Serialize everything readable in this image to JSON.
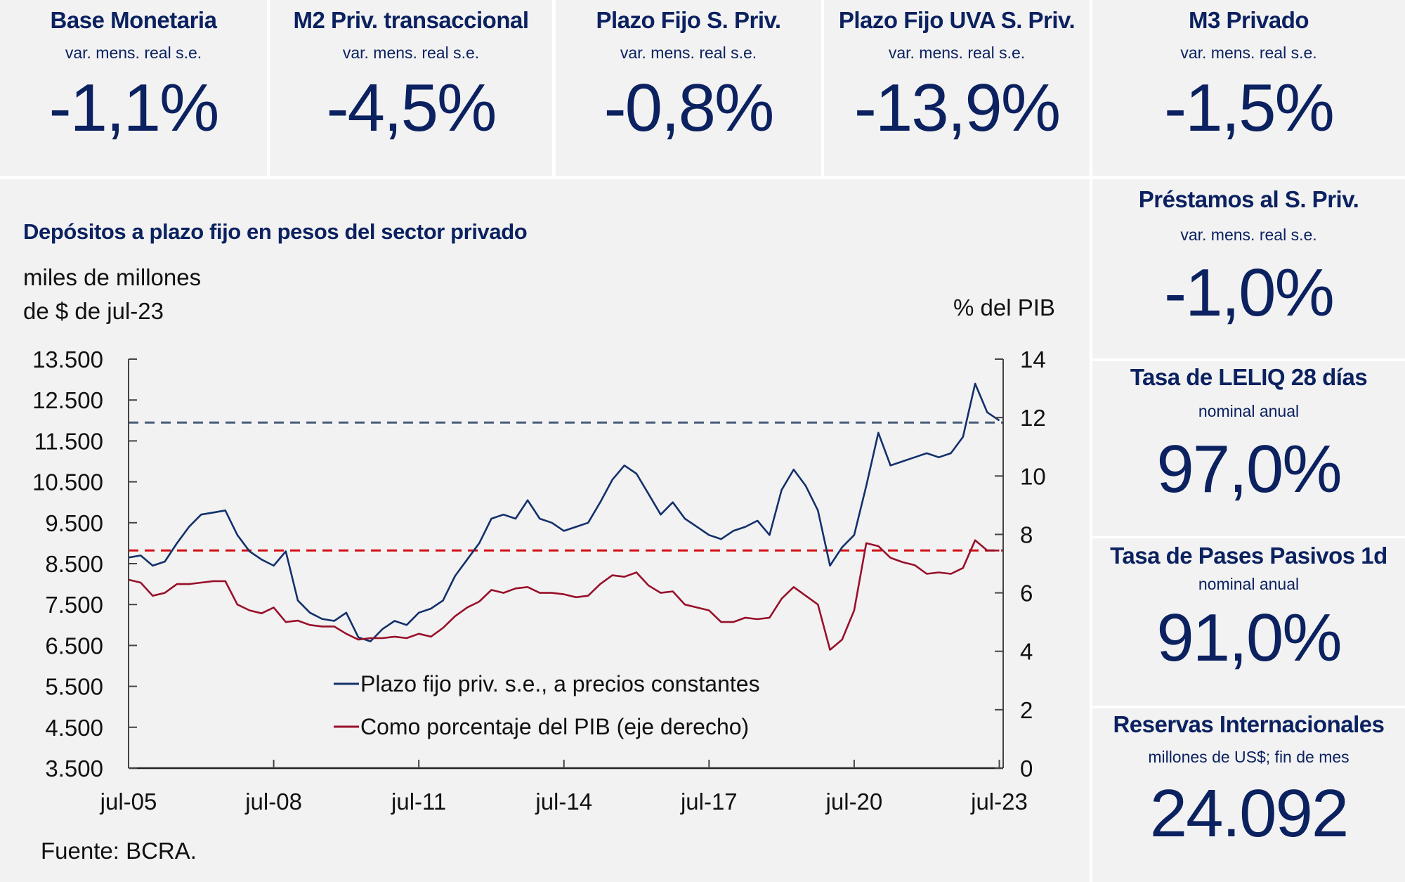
{
  "top_cards": [
    {
      "title": "Base Monetaria",
      "subtitle": "var. mens. real s.e.",
      "value": "-1,1%"
    },
    {
      "title": "M2 Priv. transaccional",
      "subtitle": "var. mens. real s.e.",
      "value": "-4,5%"
    },
    {
      "title": "Plazo Fijo S. Priv.",
      "subtitle": "var. mens. real s.e.",
      "value": "-0,8%"
    },
    {
      "title": "Plazo Fijo UVA S. Priv.",
      "subtitle": "var. mens. real s.e.",
      "value": "-13,9%"
    },
    {
      "title": "M3 Privado",
      "subtitle": "var. mens. real s.e.",
      "value": "-1,5%"
    }
  ],
  "side_cards": [
    {
      "title": "Préstamos al S. Priv.",
      "subtitle": "var. mens. real s.e.",
      "value": "-1,0%"
    },
    {
      "title": "Tasa de LELIQ 28 días",
      "subtitle": "nominal anual",
      "value": "97,0%"
    },
    {
      "title": "Tasa de Pases Pasivos 1d",
      "subtitle": "nominal anual",
      "value": "91,0%"
    },
    {
      "title": "Reservas Internacionales",
      "subtitle": "millones de US$; fin de mes",
      "value": "24.092"
    }
  ],
  "chart_panel": {
    "title": "Depósitos a plazo fijo en pesos del sector privado",
    "unit_left_line1": "miles de millones",
    "unit_left_line2": "de $ de jul-23",
    "unit_right": "% del PIB",
    "source": "Fuente: BCRA."
  },
  "colors": {
    "navy": "#0b2160",
    "series_blue": "#13306b",
    "series_red": "#98102a",
    "ref_blue_dashed": "#4a5a78",
    "ref_red_dashed": "#d40f14",
    "panel_bg": "#f2f2f2"
  },
  "chart_data": {
    "type": "line",
    "title": "Depósitos a plazo fijo en pesos del sector privado",
    "xlabel": "",
    "ylabel": "miles de millones de $ de jul-23",
    "y2label": "% del PIB",
    "ylim": [
      3500,
      13500
    ],
    "y2lim": [
      0,
      14
    ],
    "yticks": [
      "13.500",
      "12.500",
      "11.500",
      "10.500",
      "9.500",
      "8.500",
      "7.500",
      "6.500",
      "5.500",
      "4.500",
      "3.500"
    ],
    "ytick_values": [
      13500,
      12500,
      11500,
      10500,
      9500,
      8500,
      7500,
      6500,
      5500,
      4500,
      3500
    ],
    "y2ticks": [
      "14",
      "12",
      "10",
      "8",
      "6",
      "4",
      "2",
      "0"
    ],
    "y2tick_values": [
      14,
      12,
      10,
      8,
      6,
      4,
      2,
      0
    ],
    "xticks": [
      "jul-05",
      "jul-08",
      "jul-11",
      "jul-14",
      "jul-17",
      "jul-20",
      "jul-23"
    ],
    "xtick_values": [
      2005.5,
      2008.5,
      2011.5,
      2014.5,
      2017.5,
      2020.5,
      2023.5
    ],
    "xlim": [
      2005.5,
      2023.58
    ],
    "grid": false,
    "legend_position": "bottom-center",
    "x": [
      2005.5,
      2005.75,
      2006.0,
      2006.25,
      2006.5,
      2006.75,
      2007.0,
      2007.25,
      2007.5,
      2007.75,
      2008.0,
      2008.25,
      2008.5,
      2008.75,
      2009.0,
      2009.25,
      2009.5,
      2009.75,
      2010.0,
      2010.25,
      2010.5,
      2010.75,
      2011.0,
      2011.25,
      2011.5,
      2011.75,
      2012.0,
      2012.25,
      2012.5,
      2012.75,
      2013.0,
      2013.25,
      2013.5,
      2013.75,
      2014.0,
      2014.25,
      2014.5,
      2014.75,
      2015.0,
      2015.25,
      2015.5,
      2015.75,
      2016.0,
      2016.25,
      2016.5,
      2016.75,
      2017.0,
      2017.25,
      2017.5,
      2017.75,
      2018.0,
      2018.25,
      2018.5,
      2018.75,
      2019.0,
      2019.25,
      2019.5,
      2019.75,
      2020.0,
      2020.25,
      2020.5,
      2020.75,
      2021.0,
      2021.25,
      2021.5,
      2021.75,
      2022.0,
      2022.25,
      2022.5,
      2022.75,
      2023.0,
      2023.25,
      2023.5
    ],
    "series": [
      {
        "name": "Plazo fijo priv. s.e., a precios constantes",
        "axis": "left",
        "values": [
          8650,
          8700,
          8450,
          8550,
          9000,
          9400,
          9700,
          9750,
          9800,
          9200,
          8800,
          8600,
          8450,
          8800,
          7600,
          7300,
          7150,
          7100,
          7300,
          6700,
          6600,
          6900,
          7100,
          7000,
          7300,
          7400,
          7600,
          8200,
          8600,
          9000,
          9600,
          9700,
          9600,
          10050,
          9600,
          9500,
          9300,
          9400,
          9500,
          10000,
          10550,
          10900,
          10700,
          10200,
          9700,
          10000,
          9600,
          9400,
          9200,
          9100,
          9300,
          9400,
          9550,
          9200,
          10300,
          10800,
          10400,
          9800,
          8450,
          8900,
          9200,
          10400,
          11700,
          10900,
          11000,
          11100,
          11200,
          11100,
          11200,
          11600,
          12900,
          12200,
          12000
        ]
      },
      {
        "name": "Como porcentaje del PIB (eje derecho)",
        "axis": "right",
        "values": [
          6.45,
          6.35,
          5.9,
          6.0,
          6.3,
          6.3,
          6.35,
          6.4,
          6.4,
          5.6,
          5.4,
          5.3,
          5.5,
          5.0,
          5.05,
          4.9,
          4.85,
          4.85,
          4.6,
          4.4,
          4.45,
          4.45,
          4.5,
          4.45,
          4.6,
          4.5,
          4.8,
          5.2,
          5.5,
          5.7,
          6.1,
          6.0,
          6.15,
          6.2,
          6.0,
          6.0,
          5.95,
          5.85,
          5.9,
          6.3,
          6.6,
          6.55,
          6.7,
          6.25,
          6.0,
          6.05,
          5.6,
          5.5,
          5.4,
          5.0,
          5.0,
          5.15,
          5.1,
          5.15,
          5.8,
          6.2,
          5.9,
          5.6,
          4.05,
          4.4,
          5.4,
          7.7,
          7.6,
          7.2,
          7.05,
          6.95,
          6.65,
          6.7,
          6.65,
          6.85,
          7.8,
          7.45,
          7.45
        ]
      }
    ],
    "reference_lines": [
      {
        "name": "Nivel de referencia plazo fijo (línea discontinua azul)",
        "axis": "left",
        "value": 11950
      },
      {
        "name": "Nivel de referencia % del PIB (línea discontinua roja)",
        "axis": "right",
        "value": 7.45
      }
    ],
    "legend": [
      "Plazo fijo priv. s.e., a precios constantes",
      "Como porcentaje del PIB (eje derecho)"
    ]
  }
}
